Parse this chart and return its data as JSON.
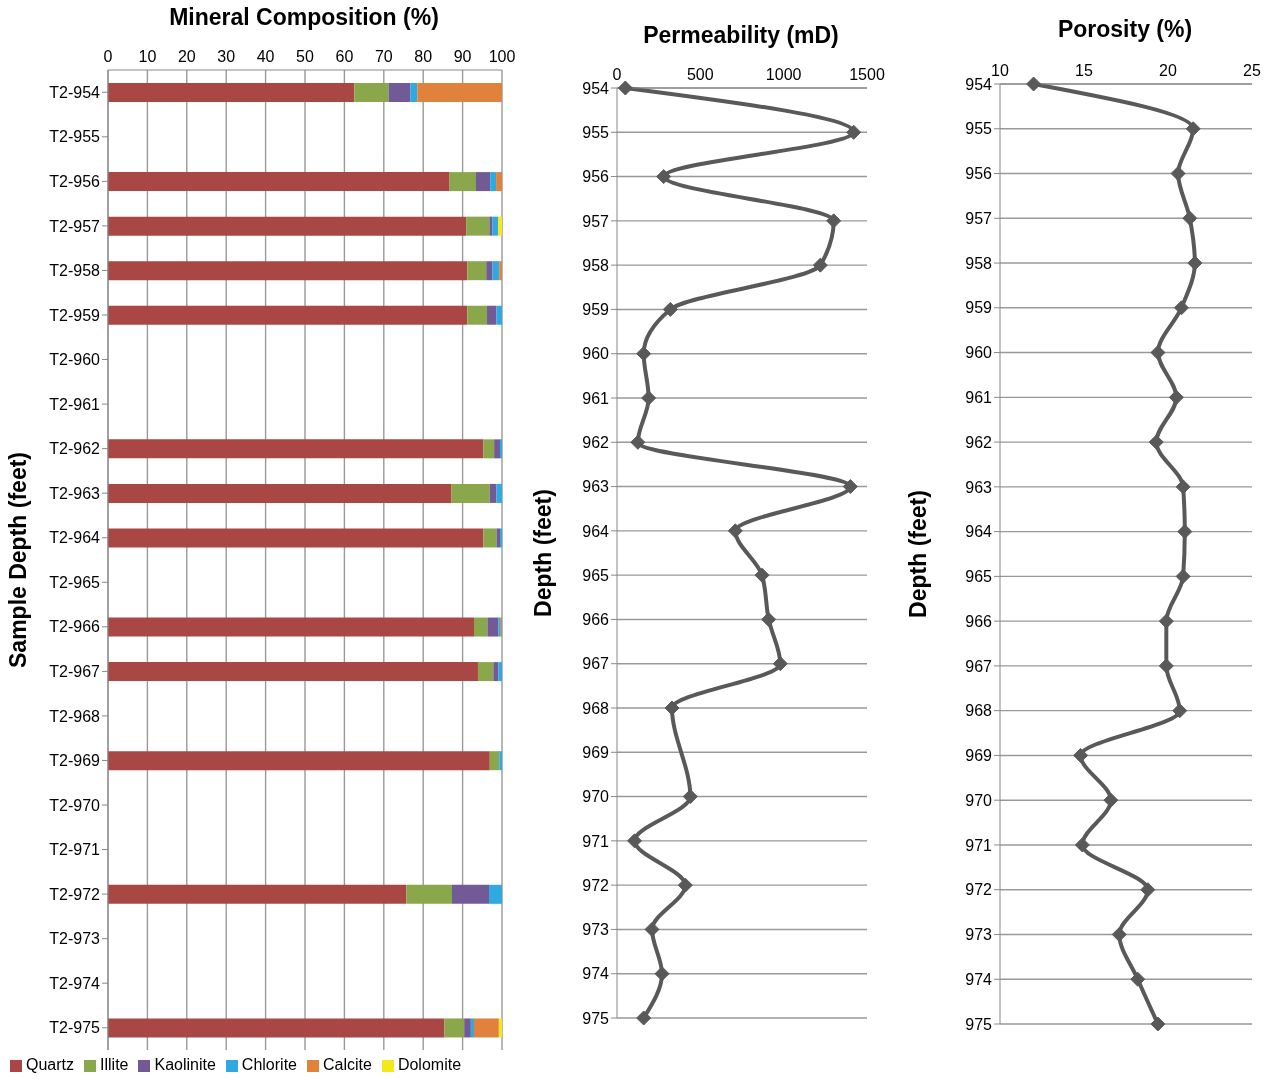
{
  "chart_data": [
    {
      "type": "bar",
      "orientation": "horizontal",
      "stacked": true,
      "title": "Mineral Composition (%)",
      "ylabel": "Sample Depth (feet)",
      "categories": [
        "T2-954",
        "T2-955",
        "T2-956",
        "T2-957",
        "T2-958",
        "T2-959",
        "T2-960",
        "T2-961",
        "T2-962",
        "T2-963",
        "T2-964",
        "T2-965",
        "T2-966",
        "T2-967",
        "T2-968",
        "T2-969",
        "T2-970",
        "T2-971",
        "T2-972",
        "T2-973",
        "T2-974",
        "T2-975"
      ],
      "series": [
        {
          "name": "Quartz",
          "color": "#a94744",
          "values": [
            62.5,
            null,
            86.7,
            90.9,
            91.2,
            91.2,
            null,
            null,
            95.3,
            87.2,
            95.3,
            null,
            92.9,
            93.9,
            null,
            96.9,
            null,
            null,
            75.7,
            null,
            null,
            85.4
          ]
        },
        {
          "name": "Illite",
          "color": "#8aa84b",
          "values": [
            8.7,
            null,
            6.7,
            5.9,
            4.8,
            5.0,
            null,
            null,
            2.7,
            9.7,
            3.3,
            null,
            3.4,
            3.9,
            null,
            2.4,
            null,
            null,
            11.6,
            null,
            null,
            5.0
          ]
        },
        {
          "name": "Kaolinite",
          "color": "#725a96",
          "values": [
            5.5,
            null,
            3.6,
            0.8,
            1.6,
            2.4,
            null,
            null,
            1.5,
            1.7,
            0.9,
            null,
            2.8,
            1.3,
            null,
            null,
            null,
            null,
            9.4,
            null,
            null,
            1.7
          ]
        },
        {
          "name": "Chlorite",
          "color": "#2fa9e0",
          "values": [
            1.8,
            null,
            1.5,
            1.4,
            1.7,
            1.4,
            null,
            null,
            0.5,
            1.4,
            0.5,
            null,
            0.6,
            0.9,
            null,
            0.7,
            null,
            null,
            3.3,
            null,
            null,
            0.8
          ]
        },
        {
          "name": "Calcite",
          "color": "#e0823b",
          "values": [
            21.5,
            null,
            1.5,
            null,
            0.7,
            null,
            null,
            null,
            null,
            null,
            null,
            null,
            0.3,
            null,
            null,
            null,
            null,
            null,
            null,
            null,
            null,
            6.3
          ]
        },
        {
          "name": "Dolomite",
          "color": "#f4e81c",
          "values": [
            null,
            null,
            null,
            1.0,
            null,
            null,
            null,
            null,
            null,
            null,
            null,
            null,
            null,
            null,
            null,
            null,
            null,
            null,
            null,
            null,
            null,
            0.8
          ]
        }
      ],
      "xlim": [
        0,
        100
      ],
      "xticks": [
        0,
        10,
        20,
        30,
        40,
        50,
        60,
        70,
        80,
        90,
        100
      ],
      "grid": "x",
      "legend": "bottom"
    },
    {
      "type": "line",
      "orientation": "horizontal",
      "title": "Permeability (mD)",
      "ylabel": "Depth (feet)",
      "categories": [
        "954",
        "955",
        "956",
        "957",
        "958",
        "959",
        "960",
        "961",
        "962",
        "963",
        "964",
        "965",
        "966",
        "967",
        "968",
        "969",
        "970",
        "971",
        "972",
        "973",
        "974",
        "975"
      ],
      "series": [
        {
          "color": "#595959",
          "values": [
            50,
            1420,
            280,
            1300,
            1220,
            320,
            160,
            190,
            125,
            1400,
            710,
            870,
            910,
            980,
            330,
            null,
            440,
            105,
            410,
            210,
            270,
            160
          ]
        }
      ],
      "xlim": [
        0,
        1500
      ],
      "xticks": [
        0,
        500,
        1000,
        1500
      ],
      "grid": "y",
      "marker": "diamond",
      "legend": false
    },
    {
      "type": "line",
      "orientation": "horizontal",
      "title": "Porosity (%)",
      "ylabel": "Depth (feet)",
      "categories": [
        "954",
        "955",
        "956",
        "957",
        "958",
        "959",
        "960",
        "961",
        "962",
        "963",
        "964",
        "965",
        "966",
        "967",
        "968",
        "969",
        "970",
        "971",
        "972",
        "973",
        "974",
        "975"
      ],
      "series": [
        {
          "color": "#595959",
          "values": [
            12.0,
            21.5,
            20.6,
            21.3,
            21.6,
            20.8,
            19.4,
            20.5,
            19.3,
            20.9,
            21.0,
            20.9,
            19.9,
            19.9,
            20.7,
            14.8,
            16.6,
            14.9,
            18.8,
            17.1,
            18.2,
            19.4
          ]
        }
      ],
      "xlim": [
        10,
        25
      ],
      "xticks": [
        10,
        15,
        20,
        25
      ],
      "grid": "y",
      "marker": "diamond",
      "legend": false
    }
  ]
}
